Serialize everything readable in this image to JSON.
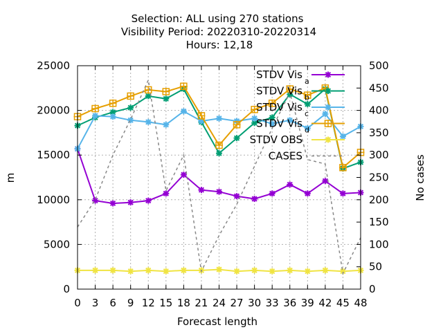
{
  "chart_data": {
    "type": "line",
    "title_lines": [
      "Selection: ALL using   270 stations",
      "Visibility   Period: 20220310-20220314",
      "Hours:  12,18"
    ],
    "xlabel": "Forecast length",
    "ylabel": "m",
    "y2label": "No cases",
    "x": [
      0,
      3,
      6,
      9,
      12,
      15,
      18,
      21,
      24,
      27,
      30,
      33,
      36,
      39,
      42,
      45,
      48
    ],
    "xlim": [
      0,
      48
    ],
    "ylim": [
      0,
      25000
    ],
    "y2lim": [
      0,
      500
    ],
    "yticks": [
      0,
      5000,
      10000,
      15000,
      20000,
      25000
    ],
    "y2ticks": [
      0,
      50,
      100,
      150,
      200,
      250,
      300,
      350,
      400,
      450,
      500
    ],
    "grid": true,
    "legend_position": "top-right",
    "series": [
      {
        "name": "STDV Vis",
        "subscript": "a",
        "color": "#9400d3",
        "marker": "star",
        "axis": "y",
        "dash": false,
        "values": [
          15700,
          9900,
          9600,
          9700,
          9900,
          10700,
          12800,
          11100,
          10900,
          10400,
          10100,
          10700,
          11700,
          10700,
          12100,
          10700,
          10800
        ]
      },
      {
        "name": "STDV Vis",
        "subscript": "b",
        "color": "#009e73",
        "marker": "star",
        "axis": "y",
        "dash": false,
        "values": [
          18300,
          19200,
          19800,
          20300,
          21600,
          21300,
          22400,
          18700,
          15200,
          16900,
          18600,
          19200,
          21800,
          20700,
          22400,
          13500,
          14200
        ]
      },
      {
        "name": "STDV Vis",
        "subscript": "c",
        "color": "#56b4e9",
        "marker": "star",
        "axis": "y",
        "dash": false,
        "values": [
          15700,
          19400,
          19300,
          18900,
          18700,
          18400,
          19900,
          18800,
          19100,
          18800,
          19100,
          18500,
          18900,
          18000,
          19600,
          17100,
          18200
        ]
      },
      {
        "name": "STDV Vis",
        "subscript": "d",
        "color": "#e69f00",
        "marker": "square",
        "axis": "y",
        "dash": false,
        "values": [
          19300,
          20200,
          20800,
          21600,
          22300,
          22100,
          22700,
          19400,
          16100,
          18400,
          20100,
          20800,
          22400,
          21700,
          22500,
          13600,
          15300
        ]
      },
      {
        "name": "STDV OBS",
        "subscript": "",
        "color": "#f0e442",
        "marker": "star",
        "axis": "y",
        "dash": false,
        "values": [
          2100,
          2100,
          2100,
          2000,
          2100,
          2000,
          2100,
          2100,
          2200,
          2000,
          2100,
          2000,
          2100,
          2000,
          2100,
          2000,
          2100
        ]
      },
      {
        "name": "CASES",
        "subscript": "",
        "color": "#888888",
        "marker": "none",
        "axis": "y2",
        "dash": true,
        "values": [
          139,
          200,
          300,
          380,
          468,
          220,
          300,
          40,
          120,
          190,
          275,
          360,
          440,
          290,
          280,
          35,
          115
        ]
      }
    ]
  }
}
